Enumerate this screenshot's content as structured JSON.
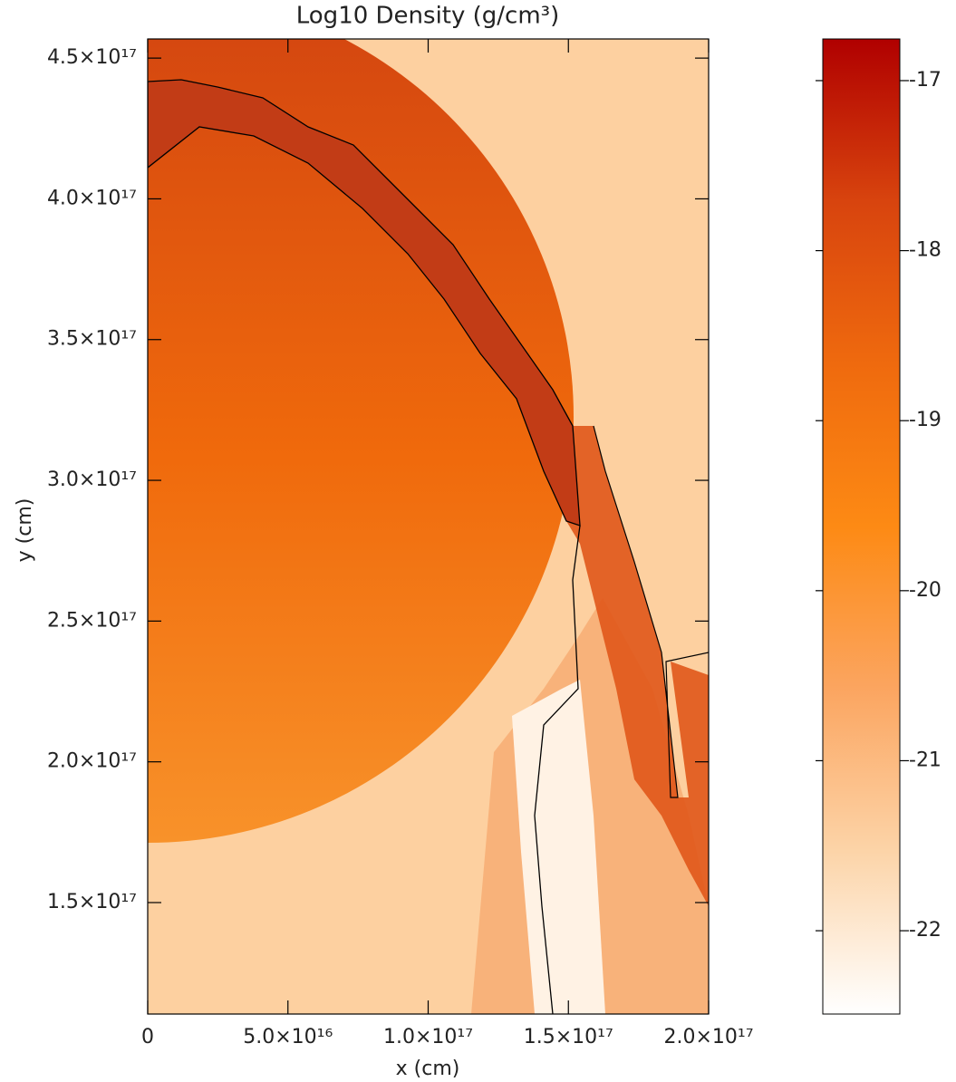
{
  "chart_data": {
    "type": "heatmap",
    "title": "Log10 Density (g/cm³)",
    "x_label": "x (cm)",
    "y_label": "y (cm)",
    "xlim": [
      0,
      2e+17
    ],
    "ylim": [
      1.104e+17,
      4.568e+17
    ],
    "xticks": [
      0,
      {
        "value": 5e+16,
        "label": "5.0×10¹⁶"
      },
      {
        "value": 1e+17,
        "label": "1.0×10¹⁷"
      },
      {
        "value": 1.5e+17,
        "label": "1.5×10¹⁷"
      },
      {
        "value": 2e+17,
        "label": "2.0×10¹⁷"
      }
    ],
    "yticks": [
      {
        "value": 1.5e+17,
        "label": "1.5×10¹⁷"
      },
      {
        "value": 2e+17,
        "label": "2.0×10¹⁷"
      },
      {
        "value": 2.5e+17,
        "label": "2.5×10¹⁷"
      },
      {
        "value": 3e+17,
        "label": "3.0×10¹⁷"
      },
      {
        "value": 3.5e+17,
        "label": "3.5×10¹⁷"
      },
      {
        "value": 4e+17,
        "label": "4.0×10¹⁷"
      },
      {
        "value": 4.5e+17,
        "label": "4.5×10¹⁷"
      }
    ],
    "colorbar": {
      "lim": [
        -22.49,
        -16.755
      ],
      "ticks": [
        -22,
        -21,
        -20,
        -19,
        -18,
        -17
      ],
      "colors": [
        "#ffffff",
        "#fcd4a8",
        "#fba560",
        "#fd8a14",
        "#ef6a0e",
        "#d8440e",
        "#b00000"
      ]
    }
  }
}
